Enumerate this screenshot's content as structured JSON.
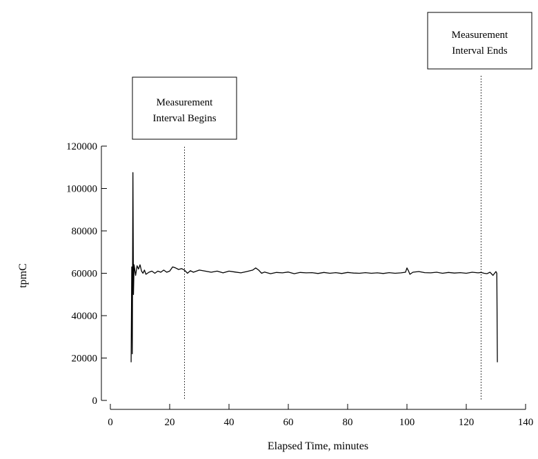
{
  "chart_data": {
    "type": "line",
    "xlabel": "Elapsed Time, minutes",
    "ylabel": "tpmC",
    "xlim": [
      0,
      140
    ],
    "ylim": [
      0,
      120000
    ],
    "x_ticks": [
      0,
      20,
      40,
      60,
      80,
      100,
      120,
      140
    ],
    "y_ticks": [
      0,
      20000,
      40000,
      60000,
      80000,
      100000,
      120000
    ],
    "x_tick_labels": [
      "0",
      "20",
      "40",
      "60",
      "80",
      "100",
      "120",
      "140"
    ],
    "y_tick_labels": [
      "0",
      "20000",
      "40000",
      "60000",
      "80000",
      "100000",
      "120000"
    ],
    "grid": false,
    "series": [
      {
        "x": [
          7,
          7.2,
          7.4,
          7.6,
          7.8,
          8,
          8.5,
          9,
          9.5,
          10,
          10.5,
          11,
          11.5,
          12,
          13,
          14,
          15,
          16,
          17,
          18,
          19,
          20,
          21,
          22,
          23,
          24,
          25,
          26,
          27,
          28,
          30,
          32,
          34,
          36,
          38,
          40,
          42,
          44,
          46,
          48,
          49,
          50,
          51,
          52,
          54,
          56,
          58,
          60,
          62,
          64,
          66,
          68,
          70,
          72,
          74,
          76,
          78,
          80,
          82,
          84,
          86,
          88,
          90,
          92,
          94,
          96,
          98,
          99.5,
          100,
          100.5,
          101,
          102,
          104,
          106,
          108,
          110,
          112,
          114,
          116,
          118,
          120,
          122,
          124,
          125,
          126,
          127,
          128,
          129,
          130,
          130.3,
          130.5
        ],
        "values": [
          18000,
          63000,
          22000,
          107500,
          50000,
          64000,
          59000,
          63500,
          62000,
          64000,
          61000,
          60000,
          61500,
          59500,
          60500,
          61000,
          60000,
          61000,
          60500,
          61500,
          60500,
          61000,
          63000,
          62500,
          61800,
          62200,
          61500,
          60000,
          61200,
          60500,
          61500,
          61000,
          60500,
          61000,
          60200,
          61000,
          60600,
          60200,
          60800,
          61500,
          62500,
          61500,
          60000,
          60600,
          59800,
          60400,
          60200,
          60600,
          59800,
          60400,
          60200,
          60300,
          59900,
          60400,
          60000,
          60300,
          59900,
          60400,
          60100,
          60000,
          60300,
          60000,
          60200,
          59900,
          60300,
          60000,
          60200,
          60500,
          62500,
          61200,
          59500,
          60500,
          60800,
          60300,
          60200,
          60500,
          60000,
          60400,
          60100,
          60300,
          60000,
          60500,
          60200,
          60400,
          60000,
          59800,
          60500,
          59000,
          60800,
          60000,
          18000
        ]
      }
    ],
    "annotations": [
      {
        "x": 25,
        "line1": "Measurement",
        "line2": "Interval Begins"
      },
      {
        "x": 125,
        "line1": "Measurement",
        "line2": "Interval Ends"
      }
    ]
  }
}
